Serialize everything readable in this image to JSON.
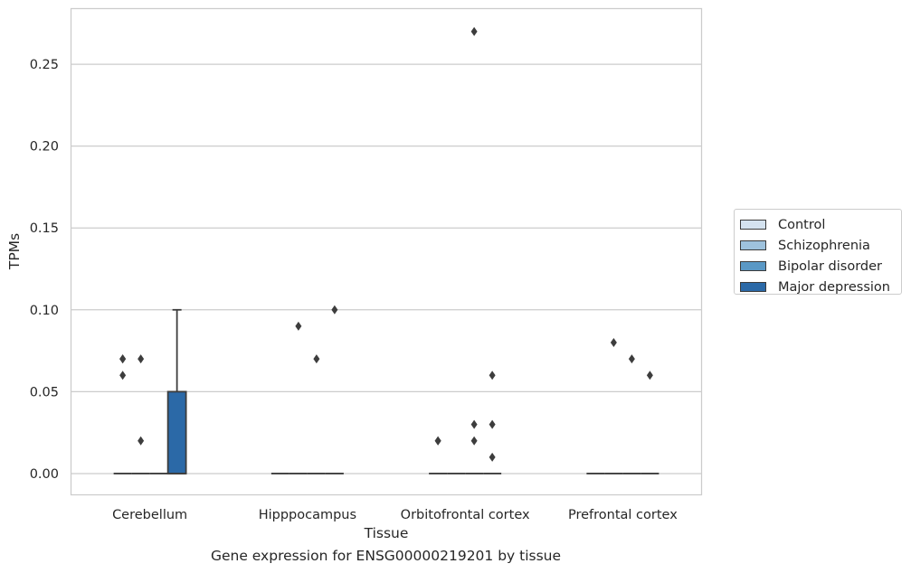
{
  "chart_data": {
    "type": "box",
    "xlabel": "Tissue",
    "ylabel": "TPMs",
    "caption": "Gene expression for ENSG00000219201 by tissue",
    "ylim": [
      -0.013,
      0.284
    ],
    "yticks": [
      0.0,
      0.05,
      0.1,
      0.15,
      0.2,
      0.25
    ],
    "ytick_labels": [
      "0.00",
      "0.05",
      "0.10",
      "0.15",
      "0.20",
      "0.25"
    ],
    "grid": true,
    "legend_position": "right",
    "categories": [
      "Cerebellum",
      "Hipppocampus",
      "Orbitofrontal cortex",
      "Prefrontal cortex"
    ],
    "series": [
      {
        "name": "Control",
        "color": "#d4e2ef",
        "boxes": [
          {
            "q1": 0,
            "median": 0,
            "q3": 0,
            "whisker_low": 0,
            "whisker_high": 0,
            "outliers": [
              0.07,
              0.06,
              0.07
            ]
          },
          {
            "q1": 0,
            "median": 0,
            "q3": 0,
            "whisker_low": 0,
            "whisker_high": 0,
            "outliers": []
          },
          {
            "q1": 0,
            "median": 0,
            "q3": 0,
            "whisker_low": 0,
            "whisker_high": 0,
            "outliers": [
              0.02,
              0.02
            ]
          },
          {
            "q1": 0,
            "median": 0,
            "q3": 0,
            "whisker_low": 0,
            "whisker_high": 0,
            "outliers": []
          }
        ]
      },
      {
        "name": "Schizophrenia",
        "color": "#9ec2dd",
        "boxes": [
          {
            "q1": 0,
            "median": 0,
            "q3": 0,
            "whisker_low": 0,
            "whisker_high": 0,
            "outliers": [
              0.07,
              0.02
            ]
          },
          {
            "q1": 0,
            "median": 0,
            "q3": 0,
            "whisker_low": 0,
            "whisker_high": 0,
            "outliers": [
              0.09
            ]
          },
          {
            "q1": 0,
            "median": 0,
            "q3": 0,
            "whisker_low": 0,
            "whisker_high": 0,
            "outliers": []
          },
          {
            "q1": 0,
            "median": 0,
            "q3": 0,
            "whisker_low": 0,
            "whisker_high": 0,
            "outliers": [
              0.08
            ]
          }
        ]
      },
      {
        "name": "Bipolar disorder",
        "color": "#5a98c5",
        "boxes": [
          {
            "q1": 0,
            "median": 0,
            "q3": 0,
            "whisker_low": 0,
            "whisker_high": 0,
            "outliers": []
          },
          {
            "q1": 0,
            "median": 0,
            "q3": 0,
            "whisker_low": 0,
            "whisker_high": 0,
            "outliers": [
              0.07
            ]
          },
          {
            "q1": 0,
            "median": 0,
            "q3": 0,
            "whisker_low": 0,
            "whisker_high": 0,
            "outliers": [
              0.27,
              0.03,
              0.02
            ]
          },
          {
            "q1": 0,
            "median": 0,
            "q3": 0,
            "whisker_low": 0,
            "whisker_high": 0,
            "outliers": [
              0.07
            ]
          }
        ]
      },
      {
        "name": "Major depression",
        "color": "#2b69a7",
        "boxes": [
          {
            "q1": 0,
            "median": 0,
            "q3": 0.05,
            "whisker_low": 0,
            "whisker_high": 0.1,
            "outliers": []
          },
          {
            "q1": 0,
            "median": 0,
            "q3": 0,
            "whisker_low": 0,
            "whisker_high": 0,
            "outliers": [
              0.1
            ]
          },
          {
            "q1": 0,
            "median": 0,
            "q3": 0,
            "whisker_low": 0,
            "whisker_high": 0,
            "outliers": [
              0.06,
              0.03,
              0.01
            ]
          },
          {
            "q1": 0,
            "median": 0,
            "q3": 0,
            "whisker_low": 0,
            "whisker_high": 0,
            "outliers": [
              0.06
            ]
          }
        ]
      }
    ]
  }
}
